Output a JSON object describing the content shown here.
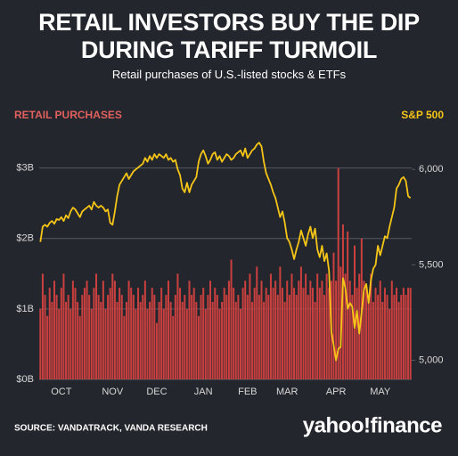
{
  "chart_data": {
    "type": "bar",
    "title": "RETAIL INVESTORS BUY THE DIP DURING TARIFF TURMOIL",
    "subtitle": "Retail purchases of U.S.-listed stocks & ETFs",
    "source": "SOURCE: VANDATRACK, VANDA RESEARCH",
    "logo": "yahoo!finance",
    "categories": [
      null,
      null,
      null,
      null,
      null,
      null,
      null,
      null,
      null,
      "OCT",
      null,
      null,
      null,
      null,
      null,
      null,
      null,
      null,
      null,
      null,
      null,
      null,
      null,
      null,
      null,
      null,
      null,
      null,
      null,
      null,
      null,
      "NOV",
      null,
      null,
      null,
      null,
      null,
      null,
      null,
      null,
      null,
      null,
      null,
      null,
      null,
      null,
      null,
      null,
      null,
      null,
      "DEC",
      null,
      null,
      null,
      null,
      null,
      null,
      null,
      null,
      null,
      null,
      null,
      null,
      null,
      null,
      null,
      null,
      null,
      null,
      null,
      "JAN",
      null,
      null,
      null,
      null,
      null,
      null,
      null,
      null,
      null,
      null,
      null,
      null,
      null,
      null,
      null,
      null,
      null,
      null,
      "FEB",
      null,
      null,
      null,
      null,
      null,
      null,
      null,
      null,
      null,
      null,
      null,
      null,
      null,
      null,
      null,
      null,
      "MAR",
      null,
      null,
      null,
      null,
      null,
      null,
      null,
      null,
      null,
      null,
      null,
      null,
      null,
      null,
      null,
      null,
      null,
      null,
      null,
      null,
      "APR",
      null,
      null,
      null,
      null,
      null,
      null,
      null,
      null,
      null,
      null,
      null,
      null,
      null,
      null,
      null,
      null,
      null,
      null,
      "MAY",
      null,
      null,
      null,
      null,
      null,
      null,
      null,
      null,
      null,
      null,
      null,
      null,
      null
    ],
    "series": [
      {
        "name": "RETAIL PURCHASES",
        "color": "#c9403f",
        "values": [
          1.0,
          1.5,
          1.2,
          0.9,
          1.3,
          1.1,
          1.4,
          1.2,
          1.0,
          1.3,
          1.5,
          1.1,
          1.2,
          1.0,
          1.4,
          1.3,
          1.1,
          0.9,
          1.2,
          1.3,
          1.4,
          1.2,
          1.0,
          1.3,
          1.5,
          1.2,
          1.1,
          1.4,
          1.0,
          1.2,
          1.3,
          1.5,
          1.4,
          1.1,
          1.3,
          1.2,
          0.9,
          1.1,
          1.4,
          1.3,
          1.2,
          1.0,
          1.3,
          1.1,
          1.2,
          1.4,
          1.0,
          1.1,
          1.3,
          1.2,
          0.8,
          1.1,
          1.3,
          1.0,
          1.2,
          1.4,
          1.1,
          0.9,
          1.2,
          1.5,
          1.3,
          1.1,
          1.2,
          1.0,
          1.4,
          1.2,
          1.3,
          1.1,
          0.9,
          1.2,
          1.3,
          1.0,
          1.2,
          1.4,
          1.1,
          1.3,
          1.2,
          1.0,
          1.1,
          1.3,
          1.2,
          1.4,
          1.7,
          1.3,
          1.1,
          1.2,
          1.0,
          1.3,
          1.4,
          1.2,
          1.5,
          1.1,
          1.3,
          1.6,
          1.2,
          1.4,
          1.1,
          1.3,
          1.2,
          1.5,
          1.3,
          1.4,
          1.2,
          1.6,
          1.3,
          1.1,
          1.4,
          1.2,
          1.5,
          1.3,
          1.2,
          1.4,
          1.6,
          1.3,
          1.5,
          1.2,
          1.4,
          1.3,
          1.1,
          1.5,
          1.3,
          1.4,
          1.2,
          1.5,
          1.3,
          1.4,
          1.8,
          1.4,
          3.0,
          1.6,
          2.2,
          1.5,
          2.1,
          1.4,
          1.2,
          1.9,
          1.3,
          1.5,
          2.0,
          1.4,
          1.3,
          1.2,
          1.5,
          1.1,
          1.3,
          1.2,
          1.4,
          1.1,
          1.3,
          1.2,
          1.0,
          1.4,
          1.2,
          1.3,
          1.1,
          1.2,
          1.3,
          1.2,
          1.3,
          1.3
        ]
      },
      {
        "name": "S&P 500",
        "color": "#f5c518",
        "axis": "y2",
        "values": [
          5620,
          5700,
          5710,
          5700,
          5720,
          5730,
          5715,
          5740,
          5735,
          5750,
          5730,
          5760,
          5745,
          5780,
          5800,
          5790,
          5770,
          5750,
          5780,
          5790,
          5800,
          5810,
          5790,
          5830,
          5810,
          5800,
          5810,
          5800,
          5780,
          5790,
          5720,
          5710,
          5780,
          5860,
          5920,
          5940,
          5960,
          5980,
          5950,
          5970,
          5990,
          6000,
          6010,
          6020,
          6030,
          6060,
          6040,
          6070,
          6050,
          6080,
          6060,
          6080,
          6070,
          6060,
          6080,
          6050,
          6060,
          6040,
          6050,
          6000,
          5970,
          5900,
          5880,
          5930,
          5880,
          5920,
          5940,
          5960,
          6040,
          6080,
          6100,
          6070,
          6030,
          6050,
          6080,
          6090,
          6050,
          6070,
          6040,
          6060,
          6080,
          6070,
          6050,
          6060,
          6080,
          6090,
          6100,
          6070,
          6110,
          6060,
          6080,
          6100,
          6110,
          6130,
          6140,
          6120,
          6040,
          5980,
          5950,
          5920,
          5880,
          5850,
          5800,
          5750,
          5780,
          5720,
          5640,
          5620,
          5580,
          5530,
          5580,
          5620,
          5680,
          5640,
          5600,
          5660,
          5700,
          5640,
          5690,
          5580,
          5540,
          5600,
          5520,
          5560,
          5470,
          5150,
          5080,
          5000,
          5060,
          5070,
          5430,
          5380,
          5270,
          5300,
          5280,
          5170,
          5260,
          5140,
          5250,
          5370,
          5400,
          5300,
          5420,
          5480,
          5500,
          5600,
          5550,
          5600,
          5650,
          5640,
          5700,
          5750,
          5800,
          5900,
          5920,
          5950,
          5960,
          5940,
          5860,
          5850
        ]
      }
    ],
    "ylim": [
      0,
      3.4
    ],
    "yticks": [
      {
        "value": 0,
        "label": "$0B"
      },
      {
        "value": 1,
        "label": "$1B"
      },
      {
        "value": 2,
        "label": "$2B"
      },
      {
        "value": 3,
        "label": "$3B"
      }
    ],
    "y2lim": [
      4900,
      6155
    ],
    "y2ticks": [
      {
        "value": 5000,
        "label": "5,000"
      },
      {
        "value": 5500,
        "label": "5,500"
      },
      {
        "value": 6000,
        "label": "6,000"
      }
    ],
    "grid": true
  }
}
